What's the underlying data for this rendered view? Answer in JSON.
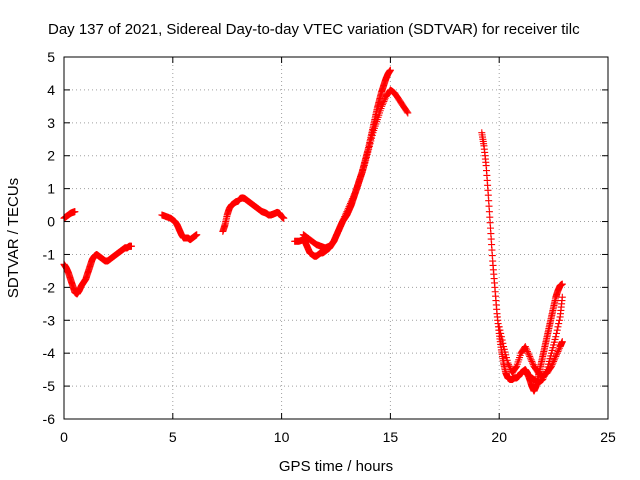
{
  "chart_data": {
    "type": "scatter",
    "title": "Day 137 of 2021, Sidereal Day-to-day VTEC variation (SDTVAR) for receiver tilc",
    "xlabel": "GPS time / hours",
    "ylabel": "SDTVAR / TECUs",
    "xlim": [
      0,
      25
    ],
    "ylim": [
      -6,
      5
    ],
    "xticks": [
      "0",
      "5",
      "10",
      "15",
      "20",
      "25"
    ],
    "yticks": [
      "-6",
      "-5",
      "-4",
      "-3",
      "-2",
      "-1",
      "0",
      "1",
      "2",
      "3",
      "4",
      "5"
    ],
    "grid": true,
    "legend": "none",
    "marker": "plus",
    "color": "#ff0000",
    "series": [
      {
        "x": [
          0.0,
          0.1,
          0.2,
          0.3,
          0.4,
          0.5
        ],
        "y": [
          0.1,
          0.15,
          0.2,
          0.25,
          0.28,
          0.3
        ]
      },
      {
        "x": [
          0.0,
          0.1,
          0.2,
          0.3,
          0.4,
          0.5,
          0.6,
          0.7,
          0.8,
          0.9,
          1.0,
          1.1,
          1.2,
          1.3,
          1.4,
          1.5,
          1.6,
          1.7,
          1.8,
          1.9,
          2.0,
          2.1,
          2.2,
          2.3,
          2.4,
          2.5,
          2.6,
          2.7,
          2.8,
          2.9,
          3.0,
          3.1
        ],
        "y": [
          -1.3,
          -1.4,
          -1.55,
          -1.75,
          -1.95,
          -2.15,
          -2.2,
          -2.1,
          -1.95,
          -1.85,
          -1.75,
          -1.55,
          -1.35,
          -1.15,
          -1.05,
          -1.0,
          -1.05,
          -1.1,
          -1.15,
          -1.2,
          -1.2,
          -1.15,
          -1.1,
          -1.05,
          -1.0,
          -0.95,
          -0.9,
          -0.85,
          -0.8,
          -0.8,
          -0.75,
          -0.75
        ]
      },
      {
        "x": [
          4.5,
          4.7,
          4.9,
          5.0,
          5.1,
          5.2,
          5.3,
          5.4,
          5.5,
          5.6,
          5.7,
          5.8,
          5.9,
          6.0,
          6.1
        ],
        "y": [
          0.2,
          0.15,
          0.1,
          0.05,
          0.0,
          -0.1,
          -0.25,
          -0.4,
          -0.5,
          -0.5,
          -0.5,
          -0.55,
          -0.5,
          -0.45,
          -0.4
        ]
      },
      {
        "x": [
          7.3,
          7.4,
          7.5,
          7.6,
          7.7,
          7.8,
          7.9,
          8.0,
          8.1,
          8.2,
          8.3,
          8.4,
          8.5,
          8.6,
          8.7,
          8.8,
          8.9,
          9.0,
          9.1,
          9.2,
          9.3,
          9.4,
          9.5,
          9.6,
          9.7,
          9.8,
          9.9,
          10.0,
          10.1
        ],
        "y": [
          -0.3,
          -0.1,
          0.2,
          0.4,
          0.5,
          0.55,
          0.6,
          0.62,
          0.7,
          0.72,
          0.7,
          0.65,
          0.6,
          0.55,
          0.5,
          0.45,
          0.4,
          0.35,
          0.3,
          0.28,
          0.25,
          0.2,
          0.2,
          0.22,
          0.25,
          0.28,
          0.25,
          0.15,
          0.1
        ]
      },
      {
        "x": [
          10.6,
          10.8,
          11.0,
          11.1,
          11.2,
          11.3,
          11.4,
          11.5,
          11.6,
          11.7,
          11.8,
          11.9,
          12.0,
          12.1,
          12.2,
          12.3,
          12.4,
          12.5,
          12.6,
          12.7,
          12.8,
          12.9,
          13.0,
          13.1,
          13.2,
          13.3,
          13.4,
          13.5,
          13.6,
          13.7,
          13.8,
          13.9,
          14.0,
          14.1,
          14.2,
          14.3,
          14.4,
          14.5,
          14.6,
          14.7,
          14.8,
          14.9,
          15.0
        ],
        "y": [
          -0.6,
          -0.6,
          -0.55,
          -0.65,
          -0.8,
          -0.95,
          -1.0,
          -1.05,
          -1.05,
          -1.0,
          -0.95,
          -0.95,
          -0.9,
          -0.85,
          -0.8,
          -0.7,
          -0.6,
          -0.45,
          -0.3,
          -0.15,
          0.0,
          0.1,
          0.2,
          0.35,
          0.5,
          0.7,
          0.9,
          1.1,
          1.3,
          1.5,
          1.75,
          2.0,
          2.25,
          2.55,
          2.85,
          3.15,
          3.45,
          3.7,
          3.95,
          4.15,
          4.35,
          4.5,
          4.6
        ]
      },
      {
        "x": [
          11.0,
          11.2,
          11.4,
          11.6,
          11.8,
          12.0,
          12.2,
          12.4,
          12.6,
          12.8,
          13.0,
          13.2,
          13.4,
          13.6,
          13.8,
          14.0,
          14.2,
          14.4,
          14.6,
          14.8,
          15.0,
          15.2,
          15.4,
          15.6,
          15.8
        ],
        "y": [
          -0.4,
          -0.5,
          -0.6,
          -0.7,
          -0.75,
          -0.8,
          -0.75,
          -0.6,
          -0.3,
          0.0,
          0.3,
          0.6,
          0.9,
          1.3,
          1.7,
          2.2,
          2.7,
          3.1,
          3.5,
          3.8,
          4.0,
          3.9,
          3.7,
          3.5,
          3.3
        ]
      },
      {
        "x": [
          19.2,
          19.3,
          19.4,
          19.5,
          19.6,
          19.7,
          19.8,
          19.9,
          20.0,
          20.1,
          20.2,
          20.3,
          20.4,
          20.5,
          20.6,
          20.7,
          20.8,
          20.9,
          21.0,
          21.1,
          21.2,
          21.3,
          21.4,
          21.5,
          21.6,
          21.7,
          21.8,
          21.9,
          22.0,
          22.1,
          22.2,
          22.3,
          22.4,
          22.5,
          22.6,
          22.7,
          22.8,
          22.9
        ],
        "y": [
          2.7,
          2.3,
          1.7,
          0.8,
          -0.2,
          -1.2,
          -2.0,
          -2.8,
          -3.4,
          -3.9,
          -4.3,
          -4.6,
          -4.75,
          -4.8,
          -4.8,
          -4.75,
          -4.75,
          -4.7,
          -4.6,
          -4.55,
          -4.5,
          -4.6,
          -4.8,
          -5.0,
          -5.15,
          -5.0,
          -4.7,
          -4.4,
          -4.1,
          -3.8,
          -3.5,
          -3.2,
          -2.9,
          -2.6,
          -2.3,
          -2.1,
          -1.95,
          -1.9
        ]
      },
      {
        "x": [
          20.0,
          20.2,
          20.4,
          20.6,
          20.8,
          21.0,
          21.2,
          21.4,
          21.6,
          21.8,
          22.0,
          22.2,
          22.4,
          22.6,
          22.8,
          22.9
        ],
        "y": [
          -3.2,
          -3.8,
          -4.3,
          -4.6,
          -4.4,
          -4.0,
          -3.8,
          -4.1,
          -4.4,
          -4.6,
          -4.7,
          -4.6,
          -4.4,
          -4.1,
          -3.8,
          -3.65
        ]
      },
      {
        "x": [
          21.2,
          21.4,
          21.6,
          21.8,
          22.0,
          22.2,
          22.4,
          22.6,
          22.8,
          22.9
        ],
        "y": [
          -4.6,
          -4.7,
          -4.8,
          -4.9,
          -4.8,
          -4.5,
          -4.0,
          -3.5,
          -2.9,
          -2.3
        ]
      }
    ]
  }
}
